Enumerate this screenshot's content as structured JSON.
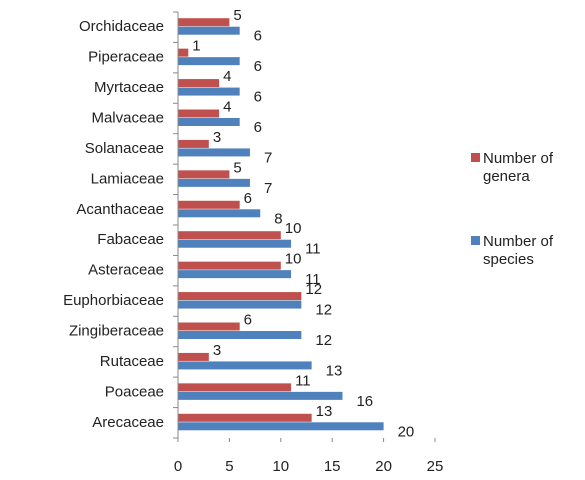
{
  "chart_data": {
    "type": "bar",
    "orientation": "horizontal",
    "categories": [
      "Orchidaceae",
      "Piperaceae",
      "Myrtaceae",
      "Malvaceae",
      "Solanaceae",
      "Lamiaceae",
      "Acanthaceae",
      "Fabaceae",
      "Asteraceae",
      "Euphorbiaceae",
      "Zingiberaceae",
      "Rutaceae",
      "Poaceae",
      "Arecaceae"
    ],
    "series": [
      {
        "name": "Number of genera",
        "color": "#c0504d",
        "values": [
          5,
          1,
          4,
          4,
          3,
          5,
          6,
          10,
          10,
          12,
          6,
          3,
          11,
          13
        ]
      },
      {
        "name": "Number of species",
        "color": "#4f81bd",
        "values": [
          6,
          6,
          6,
          6,
          7,
          7,
          8,
          11,
          11,
          12,
          12,
          13,
          16,
          20
        ]
      }
    ],
    "xlim": [
      0,
      25
    ],
    "xticks": [
      0,
      5,
      10,
      15,
      20,
      25
    ],
    "legend": "right"
  }
}
